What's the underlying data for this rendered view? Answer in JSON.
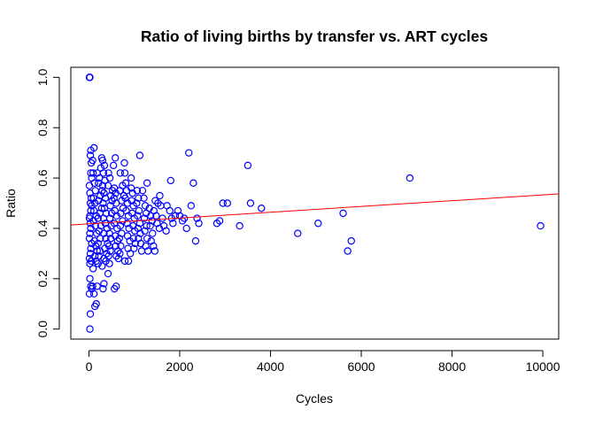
{
  "chart_data": {
    "type": "scatter",
    "title": "Ratio of living births by transfer vs. ART cycles",
    "xlabel": "Cycles",
    "ylabel": "Ratio",
    "xlim": [
      -400,
      10350
    ],
    "ylim": [
      -0.04,
      1.04
    ],
    "x_ticks": [
      0,
      2000,
      4000,
      6000,
      8000,
      10000
    ],
    "x_tick_labels": [
      "0",
      "2000",
      "4000",
      "6000",
      "8000",
      "10000"
    ],
    "y_ticks": [
      0.0,
      0.2,
      0.4,
      0.6,
      0.8,
      1.0
    ],
    "y_tick_labels": [
      "0.0",
      "0.2",
      "0.4",
      "0.6",
      "0.8",
      "1.0"
    ],
    "grid": false,
    "point_color": "#0000ff",
    "line_color": "#ff0000",
    "regression_line": {
      "intercept": 0.418,
      "slope": 1.15e-05
    },
    "points": [
      [
        10,
        1.0
      ],
      [
        20,
        1.0
      ],
      [
        20,
        0.0
      ],
      [
        30,
        0.06
      ],
      [
        10,
        0.14
      ],
      [
        20,
        0.2
      ],
      [
        40,
        0.17
      ],
      [
        60,
        0.16
      ],
      [
        80,
        0.17
      ],
      [
        110,
        0.14
      ],
      [
        130,
        0.09
      ],
      [
        160,
        0.1
      ],
      [
        180,
        0.17
      ],
      [
        90,
        0.24
      ],
      [
        20,
        0.26
      ],
      [
        50,
        0.27
      ],
      [
        10,
        0.28
      ],
      [
        30,
        0.3
      ],
      [
        40,
        0.32
      ],
      [
        60,
        0.34
      ],
      [
        10,
        0.36
      ],
      [
        20,
        0.38
      ],
      [
        40,
        0.4
      ],
      [
        30,
        0.42
      ],
      [
        10,
        0.44
      ],
      [
        20,
        0.45
      ],
      [
        40,
        0.47
      ],
      [
        60,
        0.49
      ],
      [
        30,
        0.5
      ],
      [
        50,
        0.52
      ],
      [
        20,
        0.54
      ],
      [
        10,
        0.57
      ],
      [
        60,
        0.6
      ],
      [
        40,
        0.62
      ],
      [
        50,
        0.66
      ],
      [
        30,
        0.69
      ],
      [
        40,
        0.71
      ],
      [
        80,
        0.67
      ],
      [
        110,
        0.72
      ],
      [
        90,
        0.62
      ],
      [
        120,
        0.58
      ],
      [
        140,
        0.55
      ],
      [
        100,
        0.52
      ],
      [
        130,
        0.5
      ],
      [
        110,
        0.47
      ],
      [
        160,
        0.45
      ],
      [
        100,
        0.43
      ],
      [
        140,
        0.41
      ],
      [
        170,
        0.38
      ],
      [
        120,
        0.35
      ],
      [
        150,
        0.33
      ],
      [
        180,
        0.31
      ],
      [
        130,
        0.29
      ],
      [
        160,
        0.27
      ],
      [
        200,
        0.26
      ],
      [
        220,
        0.29
      ],
      [
        240,
        0.31
      ],
      [
        200,
        0.34
      ],
      [
        250,
        0.36
      ],
      [
        220,
        0.39
      ],
      [
        260,
        0.41
      ],
      [
        200,
        0.44
      ],
      [
        240,
        0.46
      ],
      [
        280,
        0.48
      ],
      [
        210,
        0.51
      ],
      [
        250,
        0.53
      ],
      [
        290,
        0.55
      ],
      [
        210,
        0.58
      ],
      [
        230,
        0.6
      ],
      [
        180,
        0.62
      ],
      [
        260,
        0.64
      ],
      [
        300,
        0.67
      ],
      [
        280,
        0.68
      ],
      [
        340,
        0.65
      ],
      [
        320,
        0.62
      ],
      [
        350,
        0.59
      ],
      [
        300,
        0.57
      ],
      [
        330,
        0.54
      ],
      [
        360,
        0.52
      ],
      [
        310,
        0.5
      ],
      [
        340,
        0.48
      ],
      [
        380,
        0.46
      ],
      [
        320,
        0.44
      ],
      [
        360,
        0.42
      ],
      [
        400,
        0.4
      ],
      [
        330,
        0.38
      ],
      [
        370,
        0.36
      ],
      [
        410,
        0.34
      ],
      [
        350,
        0.32
      ],
      [
        390,
        0.3
      ],
      [
        330,
        0.28
      ],
      [
        370,
        0.27
      ],
      [
        290,
        0.25
      ],
      [
        330,
        0.18
      ],
      [
        310,
        0.16
      ],
      [
        420,
        0.22
      ],
      [
        450,
        0.26
      ],
      [
        430,
        0.29
      ],
      [
        470,
        0.31
      ],
      [
        440,
        0.33
      ],
      [
        480,
        0.36
      ],
      [
        450,
        0.38
      ],
      [
        490,
        0.41
      ],
      [
        460,
        0.44
      ],
      [
        500,
        0.46
      ],
      [
        470,
        0.49
      ],
      [
        510,
        0.51
      ],
      [
        480,
        0.53
      ],
      [
        520,
        0.55
      ],
      [
        420,
        0.57
      ],
      [
        460,
        0.6
      ],
      [
        430,
        0.62
      ],
      [
        540,
        0.65
      ],
      [
        580,
        0.68
      ],
      [
        560,
        0.56
      ],
      [
        590,
        0.54
      ],
      [
        550,
        0.52
      ],
      [
        600,
        0.5
      ],
      [
        570,
        0.47
      ],
      [
        610,
        0.45
      ],
      [
        560,
        0.42
      ],
      [
        620,
        0.4
      ],
      [
        580,
        0.37
      ],
      [
        630,
        0.35
      ],
      [
        590,
        0.33
      ],
      [
        640,
        0.31
      ],
      [
        600,
        0.29
      ],
      [
        560,
        0.16
      ],
      [
        600,
        0.17
      ],
      [
        650,
        0.28
      ],
      [
        680,
        0.3
      ],
      [
        700,
        0.33
      ],
      [
        670,
        0.36
      ],
      [
        720,
        0.38
      ],
      [
        690,
        0.41
      ],
      [
        740,
        0.43
      ],
      [
        700,
        0.46
      ],
      [
        750,
        0.48
      ],
      [
        720,
        0.51
      ],
      [
        770,
        0.53
      ],
      [
        680,
        0.55
      ],
      [
        740,
        0.57
      ],
      [
        690,
        0.62
      ],
      [
        780,
        0.66
      ],
      [
        790,
        0.62
      ],
      [
        810,
        0.58
      ],
      [
        830,
        0.55
      ],
      [
        800,
        0.52
      ],
      [
        850,
        0.5
      ],
      [
        820,
        0.47
      ],
      [
        870,
        0.45
      ],
      [
        840,
        0.42
      ],
      [
        880,
        0.4
      ],
      [
        850,
        0.37
      ],
      [
        900,
        0.35
      ],
      [
        860,
        0.32
      ],
      [
        910,
        0.3
      ],
      [
        790,
        0.27
      ],
      [
        870,
        0.27
      ],
      [
        930,
        0.56
      ],
      [
        960,
        0.54
      ],
      [
        940,
        0.51
      ],
      [
        980,
        0.49
      ],
      [
        950,
        0.46
      ],
      [
        1000,
        0.44
      ],
      [
        970,
        0.41
      ],
      [
        1010,
        0.39
      ],
      [
        980,
        0.36
      ],
      [
        1020,
        0.34
      ],
      [
        990,
        0.32
      ],
      [
        930,
        0.6
      ],
      [
        1060,
        0.55
      ],
      [
        1090,
        0.52
      ],
      [
        1050,
        0.5
      ],
      [
        1100,
        0.47
      ],
      [
        1070,
        0.45
      ],
      [
        1120,
        0.42
      ],
      [
        1080,
        0.4
      ],
      [
        1130,
        0.38
      ],
      [
        1090,
        0.36
      ],
      [
        1140,
        0.34
      ],
      [
        1160,
        0.31
      ],
      [
        1120,
        0.69
      ],
      [
        1180,
        0.55
      ],
      [
        1210,
        0.52
      ],
      [
        1240,
        0.49
      ],
      [
        1260,
        0.46
      ],
      [
        1220,
        0.44
      ],
      [
        1270,
        0.41
      ],
      [
        1230,
        0.39
      ],
      [
        1280,
        0.36
      ],
      [
        1250,
        0.33
      ],
      [
        1300,
        0.31
      ],
      [
        1280,
        0.58
      ],
      [
        1330,
        0.48
      ],
      [
        1360,
        0.45
      ],
      [
        1390,
        0.43
      ],
      [
        1350,
        0.41
      ],
      [
        1400,
        0.38
      ],
      [
        1370,
        0.35
      ],
      [
        1420,
        0.33
      ],
      [
        1450,
        0.31
      ],
      [
        1430,
        0.47
      ],
      [
        1460,
        0.51
      ],
      [
        1480,
        0.45
      ],
      [
        1500,
        0.42
      ],
      [
        1520,
        0.5
      ],
      [
        1550,
        0.4
      ],
      [
        1580,
        0.49
      ],
      [
        1560,
        0.53
      ],
      [
        1620,
        0.44
      ],
      [
        1650,
        0.41
      ],
      [
        1700,
        0.39
      ],
      [
        1720,
        0.49
      ],
      [
        1780,
        0.47
      ],
      [
        1820,
        0.44
      ],
      [
        1850,
        0.42
      ],
      [
        1800,
        0.59
      ],
      [
        1900,
        0.45
      ],
      [
        1960,
        0.47
      ],
      [
        2000,
        0.45
      ],
      [
        2060,
        0.43
      ],
      [
        2100,
        0.44
      ],
      [
        2150,
        0.4
      ],
      [
        2200,
        0.7
      ],
      [
        2250,
        0.49
      ],
      [
        2300,
        0.58
      ],
      [
        2350,
        0.35
      ],
      [
        2380,
        0.44
      ],
      [
        2420,
        0.42
      ],
      [
        2820,
        0.42
      ],
      [
        2880,
        0.43
      ],
      [
        2950,
        0.5
      ],
      [
        3050,
        0.5
      ],
      [
        3320,
        0.41
      ],
      [
        3500,
        0.65
      ],
      [
        3560,
        0.5
      ],
      [
        3800,
        0.48
      ],
      [
        4600,
        0.38
      ],
      [
        5050,
        0.42
      ],
      [
        5600,
        0.46
      ],
      [
        5700,
        0.31
      ],
      [
        5780,
        0.35
      ],
      [
        7070,
        0.6
      ],
      [
        9950,
        0.41
      ]
    ]
  }
}
